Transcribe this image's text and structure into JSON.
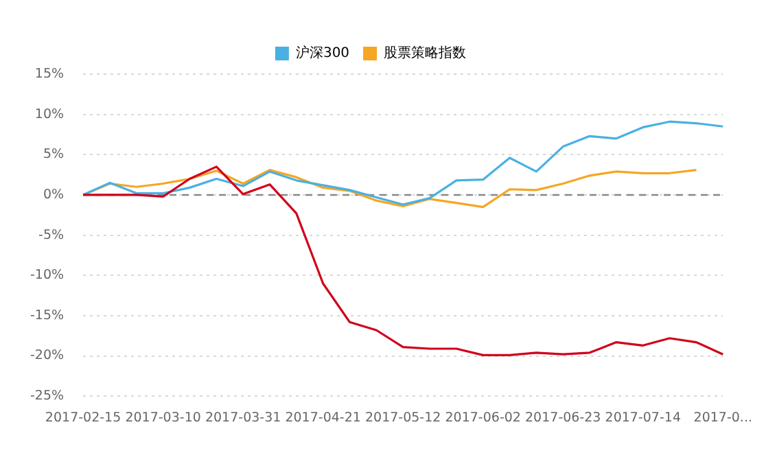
{
  "chart_data": {
    "type": "line",
    "categories": [
      "2017-02-15",
      null,
      null,
      "2017-03-10",
      null,
      null,
      "2017-03-31",
      null,
      null,
      "2017-04-21",
      null,
      null,
      "2017-05-12",
      null,
      null,
      "2017-06-02",
      null,
      null,
      "2017-06-23",
      null,
      null,
      "2017-07-14",
      null,
      null,
      "2017-0..."
    ],
    "series": [
      {
        "color": "#d0021b",
        "values": [
          0,
          0,
          0,
          -0.2,
          2.0,
          3.5,
          0.1,
          1.3,
          -2.3,
          -11.0,
          -15.8,
          -16.8,
          -18.9,
          -19.1,
          -19.1,
          -19.9,
          -19.9,
          -19.6,
          -19.8,
          -19.6,
          -18.3,
          -18.7,
          -17.8,
          -18.3,
          -19.8
        ]
      },
      {
        "name": "沪深300",
        "color": "#4ab0e2",
        "values": [
          0,
          1.5,
          0.2,
          0.2,
          0.9,
          2.0,
          1.1,
          2.9,
          1.8,
          1.2,
          0.6,
          -0.3,
          -1.2,
          -0.4,
          1.8,
          1.9,
          4.6,
          2.9,
          6.0,
          7.3,
          7.0,
          8.4,
          9.1,
          8.9,
          8.5
        ]
      },
      {
        "name": "股票策略指数",
        "color": "#f5a623",
        "values": [
          0,
          1.4,
          1.0,
          1.4,
          2.0,
          3.0,
          1.4,
          3.1,
          2.2,
          0.9,
          0.5,
          -0.7,
          -1.4,
          -0.5,
          -1.0,
          -1.5,
          0.7,
          0.6,
          1.4,
          2.4,
          2.9,
          2.7,
          2.7,
          3.1,
          null
        ]
      }
    ],
    "ylim": [
      -25,
      15
    ],
    "yticks": [
      {
        "value": -25,
        "label": "-25%"
      },
      {
        "value": -20,
        "label": "-20%"
      },
      {
        "value": -15,
        "label": "-15%"
      },
      {
        "value": -10,
        "label": "-10%"
      },
      {
        "value": -5,
        "label": "-5%"
      },
      {
        "value": 0,
        "label": "0%"
      },
      {
        "value": 5,
        "label": "5%"
      },
      {
        "value": 10,
        "label": "10%"
      },
      {
        "value": 15,
        "label": "15%"
      }
    ],
    "grid": "y",
    "legend": "top",
    "marker": "none",
    "line_style": "solid",
    "ref_lines": [
      {
        "axis": "y",
        "value": 0,
        "color": "#888888",
        "line_style": "dashed"
      }
    ]
  }
}
